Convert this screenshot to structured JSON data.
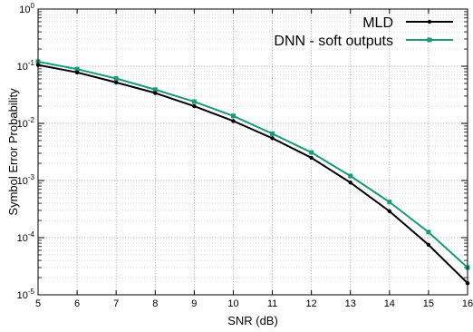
{
  "chart_data": {
    "type": "line",
    "xlabel": "SNR (dB)",
    "ylabel": "Symbol Error Probability",
    "x": [
      5,
      6,
      7,
      8,
      9,
      10,
      11,
      12,
      13,
      14,
      15,
      16
    ],
    "xlim": [
      5,
      16
    ],
    "ylim": [
      1e-05,
      1
    ],
    "yscale": "log",
    "grid": true,
    "legend_position": "top-right",
    "x_ticks": [
      "5",
      "6",
      "7",
      "8",
      "9",
      "10",
      "11",
      "12",
      "13",
      "14",
      "15",
      "16"
    ],
    "y_ticks": [
      {
        "base": "10",
        "exp": "0",
        "value": 1
      },
      {
        "base": "10",
        "exp": "-1",
        "value": 0.1
      },
      {
        "base": "10",
        "exp": "-2",
        "value": 0.01
      },
      {
        "base": "10",
        "exp": "-3",
        "value": 0.001
      },
      {
        "base": "10",
        "exp": "-4",
        "value": 0.0001
      },
      {
        "base": "10",
        "exp": "-5",
        "value": 1e-05
      }
    ],
    "series": [
      {
        "name": "MLD",
        "color": "#000000",
        "marker": "dot",
        "values": [
          0.105,
          0.078,
          0.052,
          0.034,
          0.02,
          0.011,
          0.0055,
          0.0025,
          0.00092,
          0.00029,
          7.5e-05,
          1.6e-05
        ]
      },
      {
        "name": "DNN - soft outputs",
        "color": "#1a9a7a",
        "marker": "square",
        "values": [
          0.12,
          0.089,
          0.061,
          0.039,
          0.024,
          0.0135,
          0.0066,
          0.0031,
          0.0012,
          0.00042,
          0.000125,
          3e-05
        ]
      }
    ]
  }
}
